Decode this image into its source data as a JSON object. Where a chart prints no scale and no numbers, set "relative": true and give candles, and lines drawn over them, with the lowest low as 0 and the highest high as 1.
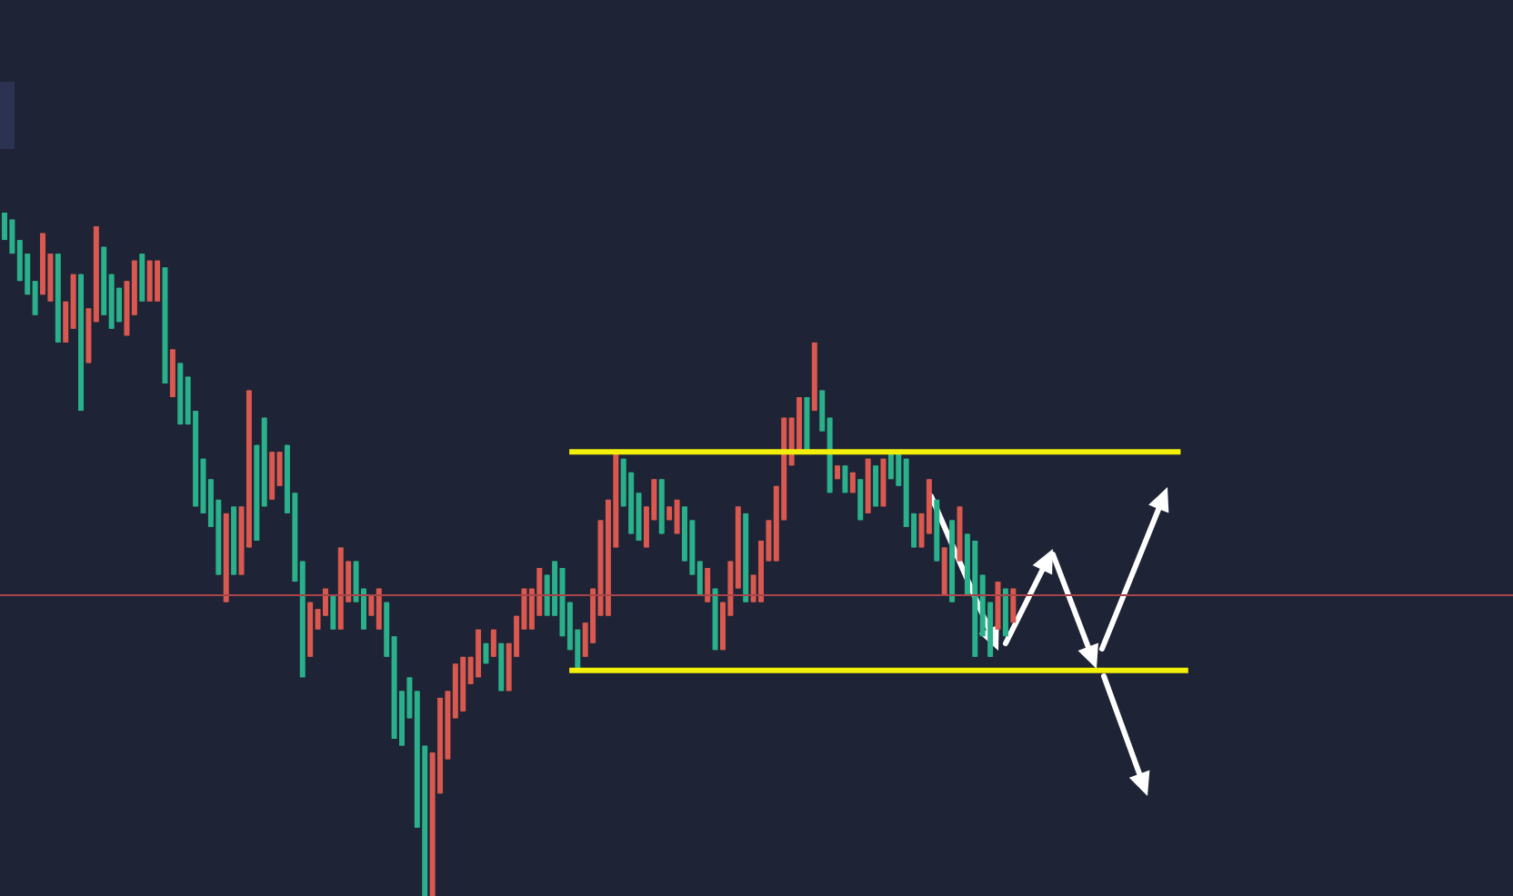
{
  "chart_data": {
    "type": "candlestick",
    "relative": true,
    "categories": [
      null,
      null,
      null,
      null,
      null,
      null,
      null,
      null,
      null,
      null,
      null,
      null,
      null,
      null,
      null,
      null,
      null,
      null,
      null,
      null,
      null,
      null,
      null,
      null,
      null,
      null,
      null,
      null,
      null,
      null,
      null,
      null,
      null,
      null,
      null,
      null,
      null,
      null,
      null,
      null,
      null,
      null,
      null,
      null,
      null,
      null,
      null,
      null,
      null,
      null,
      null,
      null,
      null,
      null,
      null,
      null,
      null,
      null,
      null,
      null,
      null,
      null,
      null,
      null,
      null,
      null,
      null,
      null,
      null,
      null,
      null,
      null,
      null,
      null,
      null,
      null,
      null,
      null,
      null,
      null,
      null,
      null,
      null,
      null,
      null,
      null,
      null,
      null,
      null,
      null,
      null,
      null,
      null,
      null,
      null,
      null,
      null,
      null,
      null,
      null,
      null,
      null,
      null,
      null,
      null,
      null,
      null,
      null,
      null,
      null,
      null,
      null,
      null,
      null,
      null,
      null,
      null,
      null,
      null,
      null,
      null,
      null,
      null,
      null,
      null,
      null,
      null,
      null,
      null,
      null,
      null,
      null,
      null,
      null,
      null,
      null,
      null,
      null,
      null,
      null,
      null,
      null,
      null,
      null,
      null,
      null,
      null,
      null,
      null,
      null,
      null,
      null,
      null,
      null,
      null,
      null,
      null,
      null,
      null,
      null,
      null,
      null,
      null,
      null,
      null,
      null,
      null,
      null,
      null,
      null,
      null,
      null,
      null,
      null,
      null,
      null,
      null,
      null,
      null,
      null,
      null,
      null,
      null,
      null,
      null,
      null,
      null,
      null,
      null,
      null,
      null,
      null,
      null,
      null,
      null,
      null,
      null,
      null
    ],
    "ohlc": [
      [
        0.96,
        1.0,
        0.96,
        1.0
      ],
      [
        0.94,
        0.99,
        0.94,
        0.99
      ],
      [
        0.9,
        0.96,
        0.9,
        0.96
      ],
      [
        0.88,
        0.94,
        0.88,
        0.94
      ],
      [
        0.85,
        0.9,
        0.85,
        0.9
      ],
      [
        0.97,
        0.97,
        0.88,
        0.88
      ],
      [
        0.94,
        0.94,
        0.87,
        0.87
      ],
      [
        0.81,
        0.94,
        0.81,
        0.94
      ],
      [
        0.87,
        0.87,
        0.81,
        0.81
      ],
      [
        0.91,
        0.91,
        0.83,
        0.83
      ],
      [
        0.71,
        0.91,
        0.71,
        0.91
      ],
      [
        0.86,
        0.86,
        0.78,
        0.78
      ],
      [
        0.98,
        0.98,
        0.84,
        0.84
      ],
      [
        0.85,
        0.95,
        0.85,
        0.95
      ],
      [
        0.83,
        0.91,
        0.83,
        0.91
      ],
      [
        0.84,
        0.89,
        0.84,
        0.89
      ],
      [
        0.9,
        0.9,
        0.82,
        0.82
      ],
      [
        0.93,
        0.93,
        0.85,
        0.85
      ],
      [
        0.87,
        0.94,
        0.87,
        0.94
      ],
      [
        0.93,
        0.93,
        0.87,
        0.87
      ],
      [
        0.93,
        0.93,
        0.87,
        0.87
      ],
      [
        0.75,
        0.92,
        0.75,
        0.92
      ],
      [
        0.8,
        0.8,
        0.73,
        0.73
      ],
      [
        0.69,
        0.78,
        0.69,
        0.78
      ],
      [
        0.69,
        0.76,
        0.69,
        0.76
      ],
      [
        0.57,
        0.71,
        0.57,
        0.71
      ],
      [
        0.56,
        0.64,
        0.56,
        0.64
      ],
      [
        0.54,
        0.61,
        0.54,
        0.61
      ],
      [
        0.47,
        0.58,
        0.47,
        0.58
      ],
      [
        0.56,
        0.56,
        0.43,
        0.43
      ],
      [
        0.47,
        0.57,
        0.47,
        0.57
      ],
      [
        0.57,
        0.57,
        0.47,
        0.47
      ],
      [
        0.74,
        0.74,
        0.51,
        0.51
      ],
      [
        0.52,
        0.66,
        0.52,
        0.66
      ],
      [
        0.57,
        0.7,
        0.57,
        0.7
      ],
      [
        0.65,
        0.65,
        0.58,
        0.58
      ],
      [
        0.65,
        0.65,
        0.6,
        0.6
      ],
      [
        0.56,
        0.66,
        0.56,
        0.66
      ],
      [
        0.46,
        0.59,
        0.46,
        0.59
      ],
      [
        0.32,
        0.49,
        0.32,
        0.49
      ],
      [
        0.43,
        0.43,
        0.35,
        0.35
      ],
      [
        0.42,
        0.42,
        0.39,
        0.39
      ],
      [
        0.45,
        0.45,
        0.41,
        0.41
      ],
      [
        0.39,
        0.44,
        0.39,
        0.44
      ],
      [
        0.51,
        0.51,
        0.39,
        0.39
      ],
      [
        0.49,
        0.49,
        0.43,
        0.43
      ],
      [
        0.43,
        0.49,
        0.43,
        0.49
      ],
      [
        0.39,
        0.45,
        0.39,
        0.45
      ],
      [
        0.44,
        0.44,
        0.41,
        0.41
      ],
      [
        0.45,
        0.45,
        0.39,
        0.39
      ],
      [
        0.35,
        0.43,
        0.35,
        0.43
      ],
      [
        0.23,
        0.38,
        0.23,
        0.38
      ],
      [
        0.22,
        0.3,
        0.22,
        0.3
      ],
      [
        0.26,
        0.32,
        0.26,
        0.32
      ],
      [
        0.1,
        0.3,
        0.1,
        0.3
      ],
      [
        0,
        0.22,
        0,
        0.22
      ],
      [
        0.21,
        0.21,
        0,
        0
      ],
      [
        0.29,
        0.29,
        0.15,
        0.15
      ],
      [
        0.3,
        0.3,
        0.2,
        0.2
      ],
      [
        0.34,
        0.34,
        0.26,
        0.26
      ],
      [
        0.35,
        0.35,
        0.27,
        0.27
      ],
      [
        0.35,
        0.35,
        0.31,
        0.31
      ],
      [
        0.39,
        0.39,
        0.32,
        0.32
      ],
      [
        0.34,
        0.37,
        0.34,
        0.37
      ],
      [
        0.39,
        0.39,
        0.35,
        0.35
      ],
      [
        0.3,
        0.37,
        0.3,
        0.37
      ],
      [
        0.37,
        0.37,
        0.3,
        0.3
      ],
      [
        0.41,
        0.41,
        0.35,
        0.35
      ],
      [
        0.45,
        0.45,
        0.39,
        0.39
      ],
      [
        0.45,
        0.45,
        0.39,
        0.39
      ],
      [
        0.48,
        0.48,
        0.41,
        0.41
      ],
      [
        0.41,
        0.47,
        0.41,
        0.47
      ],
      [
        0.41,
        0.49,
        0.41,
        0.49
      ],
      [
        0.38,
        0.48,
        0.38,
        0.48
      ],
      [
        0.36,
        0.43,
        0.36,
        0.43
      ],
      [
        0.33,
        0.39,
        0.33,
        0.39
      ],
      [
        0.4,
        0.4,
        0.35,
        0.35
      ],
      [
        0.45,
        0.45,
        0.37,
        0.37
      ],
      [
        0.55,
        0.55,
        0.41,
        0.41
      ],
      [
        0.58,
        0.58,
        0.41,
        0.41
      ],
      [
        0.65,
        0.65,
        0.51,
        0.51
      ],
      [
        0.57,
        0.64,
        0.57,
        0.64
      ],
      [
        0.53,
        0.62,
        0.53,
        0.62
      ],
      [
        0.52,
        0.59,
        0.52,
        0.59
      ],
      [
        0.57,
        0.57,
        0.51,
        0.51
      ],
      [
        0.61,
        0.61,
        0.55,
        0.55
      ],
      [
        0.53,
        0.61,
        0.53,
        0.61
      ],
      [
        0.57,
        0.57,
        0.55,
        0.55
      ],
      [
        0.58,
        0.58,
        0.53,
        0.53
      ],
      [
        0.49,
        0.57,
        0.49,
        0.57
      ],
      [
        0.47,
        0.55,
        0.47,
        0.55
      ],
      [
        0.44,
        0.49,
        0.44,
        0.49
      ],
      [
        0.48,
        0.48,
        0.43,
        0.43
      ],
      [
        0.36,
        0.45,
        0.36,
        0.45
      ],
      [
        0.43,
        0.43,
        0.36,
        0.36
      ],
      [
        0.49,
        0.49,
        0.41,
        0.41
      ],
      [
        0.57,
        0.57,
        0.45,
        0.45
      ],
      [
        0.43,
        0.56,
        0.43,
        0.56
      ],
      [
        0.47,
        0.47,
        0.43,
        0.43
      ],
      [
        0.52,
        0.52,
        0.43,
        0.43
      ],
      [
        0.55,
        0.55,
        0.49,
        0.49
      ],
      [
        0.6,
        0.6,
        0.49,
        0.49
      ],
      [
        0.7,
        0.7,
        0.55,
        0.55
      ],
      [
        0.7,
        0.7,
        0.63,
        0.63
      ],
      [
        0.73,
        0.73,
        0.65,
        0.65
      ],
      [
        0.65,
        0.73,
        0.65,
        0.73
      ],
      [
        0.81,
        0.81,
        0.71,
        0.71
      ],
      [
        0.68,
        0.74,
        0.68,
        0.74
      ],
      [
        0.59,
        0.7,
        0.59,
        0.7
      ],
      [
        0.63,
        0.63,
        0.61,
        0.61
      ],
      [
        0.59,
        0.63,
        0.59,
        0.63
      ],
      [
        0.62,
        0.62,
        0.59,
        0.59
      ],
      [
        0.55,
        0.61,
        0.55,
        0.61
      ],
      [
        0.64,
        0.64,
        0.56,
        0.56
      ],
      [
        0.57,
        0.63,
        0.57,
        0.63
      ],
      [
        0.64,
        0.64,
        0.57,
        0.57
      ],
      [
        0.61,
        0.65,
        0.61,
        0.65
      ],
      [
        0.6,
        0.65,
        0.6,
        0.65
      ],
      [
        0.54,
        0.64,
        0.54,
        0.64
      ],
      [
        0.51,
        0.56,
        0.51,
        0.56
      ],
      [
        0.56,
        0.56,
        0.51,
        0.51
      ],
      [
        0.61,
        0.61,
        0.53,
        0.53
      ],
      [
        0.49,
        0.58,
        0.49,
        0.58
      ],
      [
        0.51,
        0.51,
        0.44,
        0.44
      ],
      [
        0.43,
        0.55,
        0.43,
        0.55
      ],
      [
        0.57,
        0.57,
        0.49,
        0.49
      ],
      [
        0.44,
        0.53,
        0.44,
        0.53
      ],
      [
        0.35,
        0.52,
        0.35,
        0.52
      ],
      [
        0.38,
        0.47,
        0.38,
        0.47
      ],
      [
        0.35,
        0.43,
        0.35,
        0.43
      ],
      [
        0.46,
        0.46,
        0.39,
        0.39
      ],
      [
        0.38,
        0.45,
        0.38,
        0.45
      ],
      [
        0.45,
        0.45,
        0.4,
        0.4
      ],
      null,
      null,
      null,
      null,
      null,
      null,
      null,
      null,
      null,
      null,
      null,
      null,
      null,
      null,
      null,
      null,
      null,
      null,
      null,
      null,
      null,
      null,
      null,
      null,
      null,
      null,
      null,
      null,
      null,
      null,
      null,
      null,
      null,
      null,
      null,
      null,
      null,
      null,
      null,
      null,
      null,
      null,
      null,
      null,
      null,
      null,
      null,
      null,
      null,
      null,
      null,
      null,
      null,
      null,
      null,
      null,
      null,
      null,
      null,
      null,
      null,
      null,
      null,
      null,
      null
    ],
    "colors": [
      "#2ab08a",
      "#2ab08a",
      "#2ab08a",
      "#2ab08a",
      "#2ab08a",
      "#d9584f",
      "#d9584f",
      "#2ab08a",
      "#d9584f",
      "#d9584f",
      "#2ab08a",
      "#d9584f",
      "#d9584f",
      "#2ab08a",
      "#2ab08a",
      "#2ab08a",
      "#d9584f",
      "#d9584f",
      "#2ab08a",
      "#d9584f",
      "#d9584f",
      "#2ab08a",
      "#d9584f",
      "#2ab08a",
      "#2ab08a",
      "#2ab08a",
      "#2ab08a",
      "#2ab08a",
      "#2ab08a",
      "#d9584f",
      "#2ab08a",
      "#d9584f",
      "#d9584f",
      "#2ab08a",
      "#2ab08a",
      "#d9584f",
      "#d9584f",
      "#2ab08a",
      "#2ab08a",
      "#2ab08a",
      "#d9584f",
      "#d9584f",
      "#d9584f",
      "#2ab08a",
      "#d9584f",
      "#d9584f",
      "#2ab08a",
      "#2ab08a",
      "#d9584f",
      "#d9584f",
      "#2ab08a",
      "#2ab08a",
      "#2ab08a",
      "#2ab08a",
      "#2ab08a",
      "#2ab08a",
      "#d9584f",
      "#d9584f",
      "#d9584f",
      "#d9584f",
      "#d9584f",
      "#d9584f",
      "#d9584f",
      "#2ab08a",
      "#d9584f",
      "#2ab08a",
      "#d9584f",
      "#d9584f",
      "#d9584f",
      "#d9584f",
      "#d9584f",
      "#2ab08a",
      "#2ab08a",
      "#2ab08a",
      "#2ab08a",
      "#2ab08a",
      "#d9584f",
      "#d9584f",
      "#d9584f",
      "#d9584f",
      "#d9584f",
      "#2ab08a",
      "#2ab08a",
      "#2ab08a",
      "#d9584f",
      "#d9584f",
      "#2ab08a",
      "#d9584f",
      "#d9584f",
      "#2ab08a",
      "#2ab08a",
      "#2ab08a",
      "#d9584f",
      "#2ab08a",
      "#d9584f",
      "#d9584f",
      "#d9584f",
      "#2ab08a",
      "#d9584f",
      "#d9584f",
      "#d9584f",
      "#d9584f",
      "#d9584f",
      "#d9584f",
      "#d9584f",
      "#2ab08a",
      "#d9584f",
      "#2ab08a",
      "#2ab08a",
      "#d9584f",
      "#2ab08a",
      "#d9584f",
      "#2ab08a",
      "#d9584f",
      "#2ab08a",
      "#d9584f",
      "#2ab08a",
      "#2ab08a",
      "#2ab08a",
      "#2ab08a",
      "#d9584f",
      "#d9584f",
      "#2ab08a",
      "#d9584f",
      "#2ab08a",
      "#d9584f",
      "#2ab08a",
      "#2ab08a",
      "#2ab08a",
      "#2ab08a",
      "#d9584f",
      "#2ab08a",
      "#d9584f",
      null,
      null,
      null,
      null,
      null,
      null,
      null,
      null,
      null,
      null,
      null,
      null,
      null,
      null,
      null,
      null,
      null,
      null,
      null,
      null,
      null,
      null,
      null,
      null,
      null,
      null,
      null,
      null,
      null,
      null,
      null,
      null,
      null,
      null,
      null,
      null,
      null,
      null,
      null,
      null,
      null,
      null,
      null,
      null,
      null,
      null,
      null,
      null,
      null,
      null,
      null,
      null,
      null,
      null,
      null,
      null,
      null,
      null,
      null,
      null,
      null,
      null,
      null,
      null,
      null
    ],
    "series": [
      {
        "type": "line",
        "color": "#f2ef0a",
        "values": [
          null,
          null,
          null,
          null,
          null,
          null,
          null,
          null,
          null,
          null,
          null,
          null,
          null,
          null,
          null,
          null,
          null,
          null,
          null,
          null,
          null,
          null,
          null,
          null,
          null,
          null,
          null,
          null,
          null,
          null,
          null,
          null,
          null,
          null,
          null,
          null,
          null,
          null,
          null,
          null,
          null,
          null,
          null,
          null,
          null,
          null,
          null,
          null,
          null,
          null,
          null,
          null,
          null,
          null,
          null,
          null,
          null,
          null,
          null,
          null,
          null,
          null,
          null,
          null,
          null,
          null,
          null,
          null,
          null,
          null,
          null,
          null,
          null,
          null,
          0.65,
          null,
          null,
          null,
          null,
          null,
          null,
          null,
          null,
          null,
          null,
          null,
          null,
          null,
          null,
          null,
          null,
          null,
          null,
          null,
          null,
          null,
          null,
          null,
          null,
          null,
          null,
          null,
          null,
          null,
          null,
          null,
          null,
          null,
          null,
          null,
          null,
          null,
          null,
          null,
          null,
          null,
          null,
          null,
          null,
          null,
          null,
          null,
          null,
          null,
          null,
          null,
          null,
          null,
          null,
          null,
          null,
          null,
          null,
          null,
          null,
          null,
          null,
          null,
          null,
          null,
          null,
          null,
          null,
          null,
          null,
          null,
          null,
          null,
          null,
          null,
          null,
          null,
          null,
          null,
          0.65,
          null,
          null,
          null,
          null,
          null,
          null,
          null,
          null,
          null,
          null,
          null,
          null,
          null,
          null,
          null,
          null,
          null,
          null,
          null,
          null,
          null,
          null,
          null,
          null,
          null,
          null,
          null,
          null,
          null,
          null,
          null,
          null,
          null,
          null,
          null,
          null,
          null,
          null,
          null,
          null,
          null,
          null,
          null
        ]
      },
      {
        "type": "line",
        "color": "#f2ef0a",
        "values": [
          null,
          null,
          null,
          null,
          null,
          null,
          null,
          null,
          null,
          null,
          null,
          null,
          null,
          null,
          null,
          null,
          null,
          null,
          null,
          null,
          null,
          null,
          null,
          null,
          null,
          null,
          null,
          null,
          null,
          null,
          null,
          null,
          null,
          null,
          null,
          null,
          null,
          null,
          null,
          null,
          null,
          null,
          null,
          null,
          null,
          null,
          null,
          null,
          null,
          null,
          null,
          null,
          null,
          null,
          null,
          null,
          null,
          null,
          null,
          null,
          null,
          null,
          null,
          null,
          null,
          null,
          null,
          null,
          null,
          null,
          null,
          null,
          null,
          null,
          0.33,
          null,
          null,
          null,
          null,
          null,
          null,
          null,
          null,
          null,
          null,
          null,
          null,
          null,
          null,
          null,
          null,
          null,
          null,
          null,
          null,
          null,
          null,
          null,
          null,
          null,
          null,
          null,
          null,
          null,
          null,
          null,
          null,
          null,
          null,
          null,
          null,
          null,
          null,
          null,
          null,
          null,
          null,
          null,
          null,
          null,
          null,
          null,
          null,
          null,
          null,
          null,
          null,
          null,
          null,
          null,
          null,
          null,
          null,
          null,
          null,
          null,
          null,
          null,
          null,
          null,
          null,
          null,
          null,
          null,
          null,
          null,
          null,
          null,
          null,
          null,
          null,
          null,
          null,
          null,
          null,
          0.33,
          null,
          null,
          null,
          null,
          null,
          null,
          null,
          null,
          null,
          null,
          null,
          null,
          null,
          null,
          null,
          null,
          null,
          null,
          null,
          null,
          null,
          null,
          null,
          null,
          null,
          null,
          null,
          null,
          null,
          null,
          null,
          null,
          null,
          null,
          null,
          null,
          null,
          null,
          null,
          null,
          null,
          null
        ]
      }
    ],
    "ref_lines": [
      {
        "axis": "y",
        "value": 0.44,
        "color": "#a8434a"
      }
    ]
  }
}
